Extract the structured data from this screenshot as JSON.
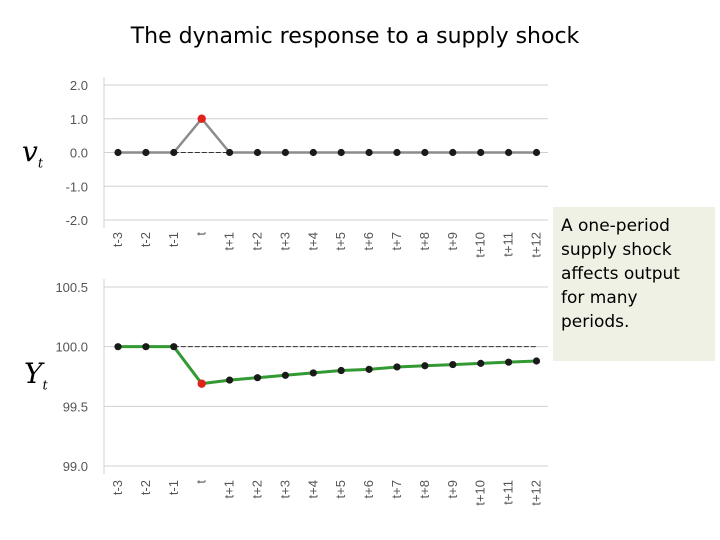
{
  "title": "The dynamic response to a supply shock",
  "callout_text": "A one-period supply shock affects output for many periods.",
  "colors": {
    "line_top": "#8c8c8c",
    "line_bottom": "#339933",
    "point": "#1a1a1a",
    "highlight": "#e0221c",
    "grid": "#d0d0d0",
    "axis_text": "#555555"
  },
  "chart_data": [
    {
      "type": "line",
      "title": "",
      "ylabel": "v",
      "ylabel_sub": "t",
      "categories": [
        "t-3",
        "t-2",
        "t-1",
        "t",
        "t+1",
        "t+2",
        "t+3",
        "t+4",
        "t+5",
        "t+6",
        "t+7",
        "t+8",
        "t+9",
        "t+10",
        "t+11",
        "t+12"
      ],
      "values": [
        0,
        0,
        0,
        1,
        0,
        0,
        0,
        0,
        0,
        0,
        0,
        0,
        0,
        0,
        0,
        0
      ],
      "highlight_index": 3,
      "baseline": 0,
      "ylim": [
        -2,
        2
      ],
      "yticks": [
        "2.0",
        "1.0",
        "0.0",
        "-1.0",
        "-2.0"
      ],
      "grid": true
    },
    {
      "type": "line",
      "title": "",
      "ylabel": "Y",
      "ylabel_sub": "t",
      "categories": [
        "t-3",
        "t-2",
        "t-1",
        "t",
        "t+1",
        "t+2",
        "t+3",
        "t+4",
        "t+5",
        "t+6",
        "t+7",
        "t+8",
        "t+9",
        "t+10",
        "t+11",
        "t+12"
      ],
      "values": [
        100,
        100,
        100,
        99.69,
        99.72,
        99.74,
        99.76,
        99.78,
        99.8,
        99.81,
        99.83,
        99.84,
        99.85,
        99.86,
        99.87,
        99.88
      ],
      "highlight_index": 3,
      "baseline": 100,
      "ylim": [
        99,
        100.5
      ],
      "yticks": [
        "100.5",
        "100.0",
        "99.5",
        "99.0"
      ],
      "grid": true
    }
  ]
}
